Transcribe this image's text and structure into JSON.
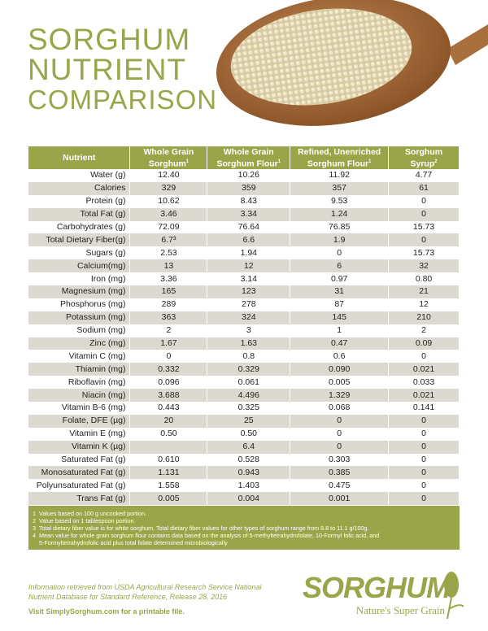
{
  "title": {
    "line1": "SORGHUM",
    "line2": "NUTRIENT",
    "line3": "COMPARISON"
  },
  "table": {
    "headers": [
      {
        "label": "Nutrient",
        "sup": ""
      },
      {
        "label": "Whole Grain Sorghum",
        "sup": "1"
      },
      {
        "label": "Whole Grain Sorghum Flour",
        "sup": "1"
      },
      {
        "label": "Refined, Unenriched Sorghum Flour",
        "sup": "1"
      },
      {
        "label": "Sorghum Syrup",
        "sup": "2"
      }
    ],
    "rows": [
      [
        "Water (g)",
        "12.40",
        "10.26",
        "11.92",
        "4.77"
      ],
      [
        "Calories",
        "329",
        "359",
        "357",
        "61"
      ],
      [
        "Protein (g)",
        "10.62",
        "8.43",
        "9.53",
        "0"
      ],
      [
        "Total Fat (g)",
        "3.46",
        "3.34",
        "1.24",
        "0"
      ],
      [
        "Carbohydrates (g)",
        "72.09",
        "76.64",
        "76.85",
        "15.73"
      ],
      [
        "Total Dietary Fiber(g)",
        "6.7³",
        "6.6",
        "1.9",
        "0"
      ],
      [
        "Sugars (g)",
        "2.53",
        "1.94",
        "0",
        "15.73"
      ],
      [
        "Calcium(mg)",
        "13",
        "12",
        "6",
        "32"
      ],
      [
        "Iron (mg)",
        "3.36",
        "3.14",
        "0.97",
        "0.80"
      ],
      [
        "Magnesium (mg)",
        "165",
        "123",
        "31",
        "21"
      ],
      [
        "Phosphorus (mg)",
        "289",
        "278",
        "87",
        "12"
      ],
      [
        "Potassium (mg)",
        "363",
        "324",
        "145",
        "210"
      ],
      [
        "Sodium (mg)",
        "2",
        "3",
        "1",
        "2"
      ],
      [
        "Zinc (mg)",
        "1.67",
        "1.63",
        "0.47",
        "0.09"
      ],
      [
        "Vitamin C (mg)",
        "0",
        "0.8",
        "0.6",
        "0"
      ],
      [
        "Thiamin (mg)",
        "0.332",
        "0.329",
        "0.090",
        "0.021"
      ],
      [
        "Riboflavin (mg)",
        "0.096",
        "0.061",
        "0.005",
        "0.033"
      ],
      [
        "Niacin (mg)",
        "3.688",
        "4.496",
        "1.329",
        "0.021"
      ],
      [
        "Vitamin B-6 (mg)",
        "0.443",
        "0.325",
        "0.068",
        "0.141"
      ],
      [
        "Folate, DFE (µg)",
        "20",
        "25",
        "0",
        "0"
      ],
      [
        "Vitamin E (mg)",
        "0.50",
        "0.50",
        "0",
        "0"
      ],
      [
        "Vitamin K (µg)",
        "",
        "6.4",
        "0",
        "0"
      ],
      [
        "Saturated Fat (g)",
        "0.610",
        "0.528",
        "0.303",
        "0"
      ],
      [
        "Monosaturated Fat (g)",
        "1.131",
        "0.943",
        "0.385",
        "0"
      ],
      [
        "Polyunsaturated Fat (g)",
        "1.558",
        "1.403",
        "0.475",
        "0"
      ],
      [
        "Trans Fat (g)",
        "0.005",
        "0.004",
        "0.001",
        "0"
      ]
    ]
  },
  "footnotes": [
    "1  Values based on 100 g uncooked portion.",
    "2  Value based on 1 tablespoon portion.",
    "3  Total dietary fiber value is for white sorghum. Total dietary fiber values for other types of sorghum range from 8.8 to 11.1 g/100g.",
    "4  Mean value for whole grain sorghum flour contains data based on the analysis of 5-methyltetrahydrofolate, 10-Formyl folic acid, and",
    "    5-Formyltetrahydrofolic acid plus total folate determined microbiologically"
  ],
  "source": {
    "line1": "Information retrieved from USDA Agricultural Research Service National",
    "line2": "Nutrient Database for Standard Reference, Release 28, 2016"
  },
  "visit": "Visit SimplySorghum.com for a printable file.",
  "logo": {
    "name": "SORGHUM",
    "tagline": "Nature's Super Grain"
  },
  "colors": {
    "accent": "#9aa549",
    "alt_row": "#dcd9d0"
  }
}
